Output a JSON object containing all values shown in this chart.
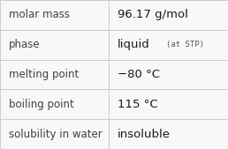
{
  "rows": [
    {
      "label": "molar mass",
      "value": "96.17 g/mol",
      "value_extra": null
    },
    {
      "label": "phase",
      "value": "liquid",
      "value_extra": "(at STP)"
    },
    {
      "label": "melting point",
      "value": "−80 °C",
      "value_extra": null
    },
    {
      "label": "boiling point",
      "value": "115 °C",
      "value_extra": null
    },
    {
      "label": "solubility in water",
      "value": "insoluble",
      "value_extra": null
    }
  ],
  "col_split": 0.475,
  "background_color": "#f8f8f8",
  "border_color": "#cccccc",
  "label_color": "#404040",
  "value_color": "#1a1a1a",
  "label_fontsize": 8.5,
  "value_fontsize": 9.5,
  "extra_fontsize": 6.5,
  "extra_color": "#555555"
}
